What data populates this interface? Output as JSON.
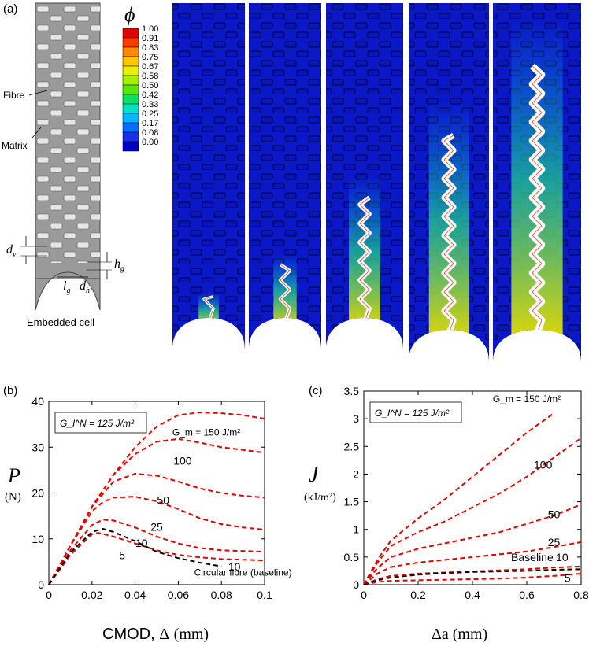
{
  "panel_a": {
    "tag": "(a)",
    "labels": {
      "fibre": "Fibre",
      "matrix": "Matrix",
      "dv": "d",
      "dv_sub": "v",
      "hg": "h",
      "hg_sub": "g",
      "lg": "l",
      "lg_sub": "g",
      "dh": "d",
      "dh_sub": "h",
      "embedded": "Embedded cell"
    },
    "colorbar": {
      "symbol": "ϕ",
      "ticks": [
        "1.00",
        "0.91",
        "0.83",
        "0.75",
        "0.67",
        "0.58",
        "0.50",
        "0.42",
        "0.33",
        "0.25",
        "0.17",
        "0.08",
        "0.00"
      ],
      "colors": [
        "#e00000",
        "#ff3a00",
        "#ff8a00",
        "#ffc400",
        "#e8f000",
        "#a8f000",
        "#58e800",
        "#10e060",
        "#00e0c8",
        "#00b8ff",
        "#0070ff",
        "#1830e8",
        "#0000c8"
      ]
    },
    "snapshot_progress": [
      0.08,
      0.2,
      0.45,
      0.7,
      0.95
    ]
  },
  "chart_data": [
    {
      "tag": "(b)",
      "type": "line",
      "annotation": "G_I^N = 125 J/m²",
      "xlabel_text": "CMOD, ",
      "xlabel_sym": "Δ",
      "xlabel_unit": "(mm)",
      "ylabel_sym": "P",
      "ylabel_unit": "(N)",
      "xlim": [
        0,
        0.1
      ],
      "ylim": [
        0,
        40
      ],
      "xticks": [
        "0",
        "0.02",
        "0.04",
        "0.06",
        "0.08",
        "0.1"
      ],
      "xtick_vals": [
        0,
        0.02,
        0.04,
        0.06,
        0.08,
        0.1
      ],
      "yticks": [
        "0",
        "10",
        "20",
        "30",
        "40"
      ],
      "ytick_vals": [
        0,
        10,
        20,
        30,
        40
      ],
      "series": [
        {
          "name": "G_m = 150 J/m²",
          "color": "#e00000",
          "x": [
            0,
            0.01,
            0.02,
            0.03,
            0.04,
            0.05,
            0.06,
            0.07,
            0.08,
            0.09,
            0.1
          ],
          "y": [
            0,
            8.5,
            17,
            24,
            30,
            34.5,
            37,
            37.6,
            37.4,
            37,
            36.2
          ]
        },
        {
          "name": "100",
          "color": "#e00000",
          "x": [
            0,
            0.01,
            0.02,
            0.03,
            0.04,
            0.05,
            0.06,
            0.07,
            0.08,
            0.09,
            0.1
          ],
          "y": [
            0,
            8.5,
            17,
            24,
            28.5,
            31.2,
            31.8,
            31,
            30,
            29.4,
            28.8
          ]
        },
        {
          "name": "50",
          "color": "#e00000",
          "x": [
            0,
            0.01,
            0.02,
            0.03,
            0.04,
            0.05,
            0.06,
            0.07,
            0.08,
            0.09,
            0.1
          ],
          "y": [
            0,
            8.5,
            17,
            22.5,
            24.2,
            23.8,
            22.5,
            21,
            20,
            19.4,
            19
          ]
        },
        {
          "name": "25",
          "color": "#e00000",
          "x": [
            0,
            0.01,
            0.02,
            0.025,
            0.03,
            0.04,
            0.05,
            0.06,
            0.07,
            0.08,
            0.09,
            0.1
          ],
          "y": [
            0,
            8.5,
            16,
            18,
            19,
            19.2,
            18.2,
            16.5,
            14.5,
            13.2,
            12.5,
            12
          ]
        },
        {
          "name": "10",
          "color": "#e00000",
          "x": [
            0,
            0.01,
            0.02,
            0.025,
            0.03,
            0.04,
            0.05,
            0.06,
            0.07,
            0.08,
            0.1
          ],
          "y": [
            0,
            7.5,
            13,
            14.2,
            14,
            12.5,
            10.5,
            9,
            8,
            7.5,
            7.2
          ]
        },
        {
          "name": "5",
          "color": "#e00000",
          "x": [
            0,
            0.01,
            0.02,
            0.023,
            0.03,
            0.04,
            0.05,
            0.06,
            0.07,
            0.08,
            0.1
          ],
          "y": [
            0,
            6.5,
            11,
            11.3,
            10.5,
            9,
            7.5,
            6.5,
            6,
            5.6,
            5.3
          ]
        },
        {
          "name": "Circular fibre (baseline)",
          "color": "#000000",
          "x": [
            0,
            0.01,
            0.02,
            0.025,
            0.03,
            0.04,
            0.05,
            0.06,
            0.07,
            0.08
          ],
          "y": [
            0,
            7,
            11.5,
            12.2,
            11.5,
            9.5,
            7.2,
            5.8,
            4.8,
            4
          ]
        }
      ],
      "labels": [
        {
          "text": "G_m = 150 J/m²",
          "x": 0.073,
          "y": 32.5
        },
        {
          "text": "100",
          "x": 0.062,
          "y": 26.2
        },
        {
          "text": "50",
          "x": 0.053,
          "y": 17.6
        },
        {
          "text": "25",
          "x": 0.05,
          "y": 11.8
        },
        {
          "text": "10",
          "x": 0.043,
          "y": 8.2
        },
        {
          "text": "5",
          "x": 0.034,
          "y": 5.6
        },
        {
          "text": "Circular fibre (baseline)",
          "x": 0.09,
          "y": 2
        },
        {
          "text": "10",
          "x": 0.086,
          "y": 3.1
        }
      ]
    },
    {
      "tag": "(c)",
      "type": "line",
      "annotation": "G_I^N = 125 J/m²",
      "xlabel_sym": "Δa",
      "xlabel_unit": "(mm)",
      "ylabel_sym": "J",
      "ylabel_unit": "(kJ/m²)",
      "xlim": [
        0,
        0.8
      ],
      "ylim": [
        0,
        3.5
      ],
      "xticks": [
        "0",
        "0.2",
        "0.4",
        "0.6",
        "0.8"
      ],
      "xtick_vals": [
        0,
        0.2,
        0.4,
        0.6,
        0.8
      ],
      "yticks": [
        "0",
        "0.5",
        "1",
        "1.5",
        "2",
        "2.5",
        "3",
        "3.5"
      ],
      "ytick_vals": [
        0,
        0.5,
        1,
        1.5,
        2,
        2.5,
        3,
        3.5
      ],
      "series": [
        {
          "name": "G_m = 150 J/m²",
          "color": "#e00000",
          "x": [
            0,
            0.05,
            0.1,
            0.2,
            0.3,
            0.4,
            0.5,
            0.6,
            0.7
          ],
          "y": [
            0,
            0.45,
            0.8,
            1.2,
            1.55,
            1.95,
            2.35,
            2.75,
            3.1
          ]
        },
        {
          "name": "100",
          "color": "#e00000",
          "x": [
            0,
            0.05,
            0.1,
            0.2,
            0.3,
            0.4,
            0.5,
            0.6,
            0.7,
            0.8
          ],
          "y": [
            0,
            0.4,
            0.7,
            0.95,
            1.15,
            1.4,
            1.65,
            1.95,
            2.3,
            2.65
          ]
        },
        {
          "name": "50",
          "color": "#e00000",
          "x": [
            0,
            0.05,
            0.1,
            0.2,
            0.3,
            0.4,
            0.5,
            0.6,
            0.7,
            0.8
          ],
          "y": [
            0,
            0.3,
            0.5,
            0.65,
            0.75,
            0.85,
            0.95,
            1.1,
            1.25,
            1.45
          ]
        },
        {
          "name": "25",
          "color": "#e00000",
          "x": [
            0,
            0.05,
            0.1,
            0.2,
            0.3,
            0.4,
            0.5,
            0.6,
            0.7,
            0.8
          ],
          "y": [
            0,
            0.2,
            0.32,
            0.4,
            0.45,
            0.5,
            0.55,
            0.6,
            0.68,
            0.77
          ]
        },
        {
          "name": "10",
          "color": "#e00000",
          "x": [
            0,
            0.05,
            0.1,
            0.2,
            0.3,
            0.4,
            0.5,
            0.6,
            0.7,
            0.8
          ],
          "y": [
            0,
            0.1,
            0.16,
            0.2,
            0.22,
            0.24,
            0.26,
            0.28,
            0.31,
            0.33
          ]
        },
        {
          "name": "5",
          "color": "#e00000",
          "x": [
            0,
            0.05,
            0.1,
            0.2,
            0.3,
            0.4,
            0.5,
            0.6,
            0.7,
            0.8
          ],
          "y": [
            0,
            0.05,
            0.07,
            0.08,
            0.09,
            0.1,
            0.11,
            0.13,
            0.16,
            0.2
          ]
        },
        {
          "name": "Baseline",
          "color": "#000000",
          "x": [
            0,
            0.05,
            0.1,
            0.2,
            0.3,
            0.4,
            0.5,
            0.6,
            0.7,
            0.8
          ],
          "y": [
            0,
            0.08,
            0.13,
            0.18,
            0.21,
            0.23,
            0.24,
            0.25,
            0.27,
            0.28
          ]
        }
      ],
      "labels": [
        {
          "text": "G_m = 150 J/m²",
          "x": 0.6,
          "y": 3.3
        },
        {
          "text": "100",
          "x": 0.66,
          "y": 2.1
        },
        {
          "text": "50",
          "x": 0.7,
          "y": 1.2
        },
        {
          "text": "25",
          "x": 0.7,
          "y": 0.7
        },
        {
          "text": "Baseline",
          "x": 0.62,
          "y": 0.43
        },
        {
          "text": "10",
          "x": 0.73,
          "y": 0.43
        },
        {
          "text": "5",
          "x": 0.75,
          "y": 0.05
        }
      ]
    }
  ]
}
